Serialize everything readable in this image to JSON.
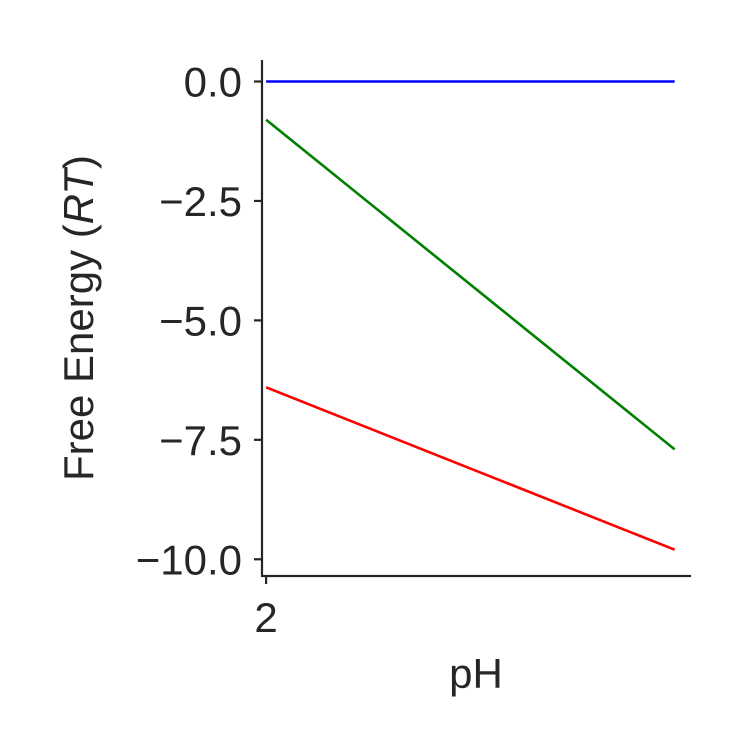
{
  "chart_data": {
    "type": "line",
    "title": "",
    "xlabel": "pH",
    "ylabel_prefix": "Free Energy (",
    "ylabel_italic": "RT",
    "ylabel_suffix": ")",
    "xlim": [
      1.95,
      7.2
    ],
    "ylim": [
      -10.35,
      0.45
    ],
    "xticks": [
      {
        "value": 2,
        "label": "2"
      }
    ],
    "yticks": [
      {
        "value": 0.0,
        "label": "0.0"
      },
      {
        "value": -2.5,
        "label": "−2.5"
      },
      {
        "value": -5.0,
        "label": "−5.0"
      },
      {
        "value": -7.5,
        "label": "−7.5"
      },
      {
        "value": -10.0,
        "label": "−10.0"
      }
    ],
    "grid": false,
    "series": [
      {
        "color": "#0000ff",
        "x": [
          2,
          7
        ],
        "y": [
          0.0,
          0.0
        ]
      },
      {
        "color": "#008000",
        "x": [
          2,
          7
        ],
        "y": [
          -0.8,
          -7.7
        ]
      },
      {
        "color": "#ff0000",
        "x": [
          2,
          7
        ],
        "y": [
          -6.4,
          -9.8
        ]
      }
    ]
  }
}
